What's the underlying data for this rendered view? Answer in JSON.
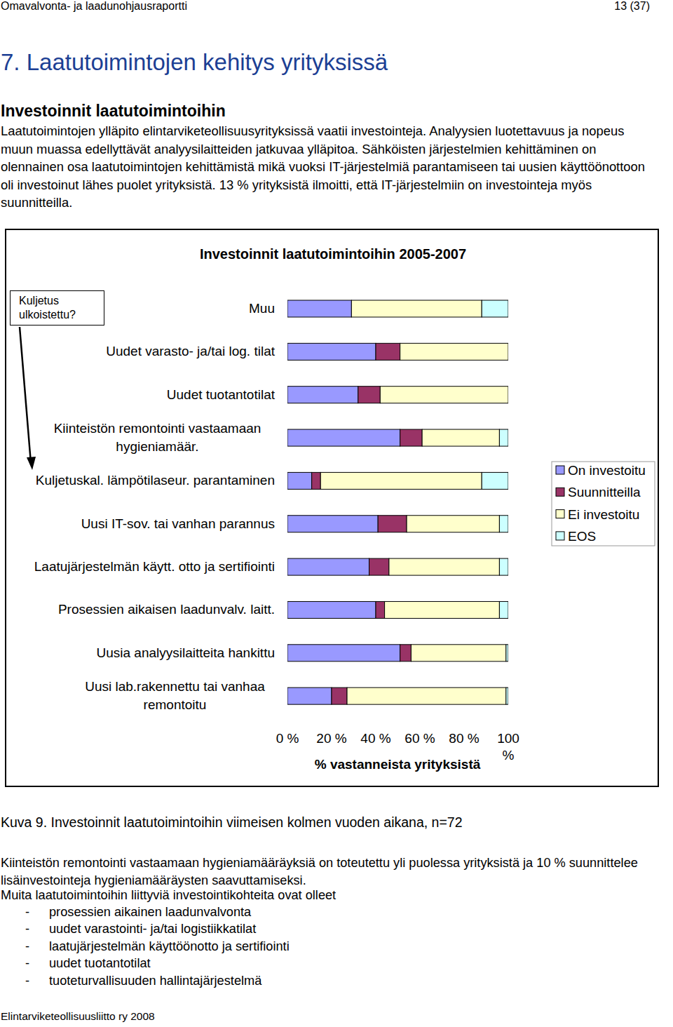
{
  "header": {
    "title": "Omavalvonta- ja laadunohjausraportti",
    "page": "13 (37)"
  },
  "heading": "7. Laatutoimintojen kehitys yrityksissä",
  "subheading": "Investoinnit laatutoimintoihin",
  "intro": "Laatutoimintojen ylläpito elintarviketeollisuusyrityksissä vaatii investointeja. Analyysien luotettavuus ja nopeus muun muassa edellyttävät analyysilaitteiden jatkuvaa ylläpitoa. Sähköisten järjestelmien kehittäminen on olennainen osa laatutoimintojen kehittämistä mikä vuoksi IT-järjestelmiä parantamiseen tai uusien käyttöönottoon oli investoinut lähes puolet yrityksistä. 13 % yrityksistä ilmoitti, että IT-järjestelmiin on investointeja myös suunnitteilla.",
  "chart_data": {
    "type": "bar",
    "orientation": "horizontal",
    "stacked": true,
    "grid": false,
    "legend": "right",
    "title": "Investoinnit laatutoimintoihin 2005-2007",
    "xlabel": "% vastanneista yrityksistä",
    "annotation": "Kuljetus ulkoistettu?",
    "categories": [
      "Muu",
      "Uudet varasto- ja/tai log. tilat",
      "Uudet tuotantotilat",
      "Kiinteistön remontointi vastaamaan hygieniamäär.",
      "Kuljetuskal. lämpötilaseur. parantaminen",
      "Uusi IT-sov. tai vanhan parannus",
      "Laatujärjestelmän käytt. otto ja sertifiointi",
      "Prosessien aikaisen laadunvalv. laitt.",
      "Uusia analyysilaitteita hankittu",
      "Uusi lab.rakennettu tai vanhaa remontoitu"
    ],
    "series": [
      {
        "name": "On investoitu",
        "color": "#9999ff",
        "values": [
          29,
          40,
          32,
          51,
          11,
          41,
          37,
          40,
          51,
          20
        ]
      },
      {
        "name": "Suunnitteilla",
        "color": "#993366",
        "values": [
          0,
          11,
          10,
          10,
          4,
          13,
          9,
          4,
          5,
          7
        ]
      },
      {
        "name": "Ei investoitu",
        "color": "#ffffcc",
        "values": [
          59,
          49,
          58,
          35,
          73,
          42,
          50,
          52,
          43,
          72
        ]
      },
      {
        "name": "EOS",
        "color": "#ccffff",
        "values": [
          12,
          0,
          0,
          4,
          12,
          4,
          4,
          4,
          1,
          1
        ]
      }
    ],
    "xlim": [
      0,
      100
    ],
    "xticks": [
      {
        "value": 0,
        "label": "0 %"
      },
      {
        "value": 20,
        "label": "20 %"
      },
      {
        "value": 40,
        "label": "40 %"
      },
      {
        "value": 60,
        "label": "60 %"
      },
      {
        "value": 80,
        "label": "80 %"
      },
      {
        "value": 100,
        "label": "100 %"
      }
    ]
  },
  "caption": "Kuva 9. Investoinnit laatutoimintoihin viimeisen kolmen vuoden aikana, n=72",
  "paragraph": "Kiinteistön remontointi vastaamaan hygieniamääräyksiä on toteutettu yli puolessa yrityksistä ja 10 % suunnittelee lisäinvestointeja hygieniamääräysten saavuttamiseksi.",
  "list_intro": "Muita laatutoimintoihin liittyviä investointikohteita ovat olleet",
  "list_marker": "-",
  "list": [
    "prosessien aikainen laadunvalvonta",
    "uudet varastointi- ja/tai logistiikkatilat",
    "laatujärjestelmän käyttöönotto ja sertifiointi",
    "uudet tuotantotilat",
    "tuoteturvallisuuden hallintajärjestelmä"
  ],
  "footer": "Elintarviketeollisuusliitto ry 2008"
}
